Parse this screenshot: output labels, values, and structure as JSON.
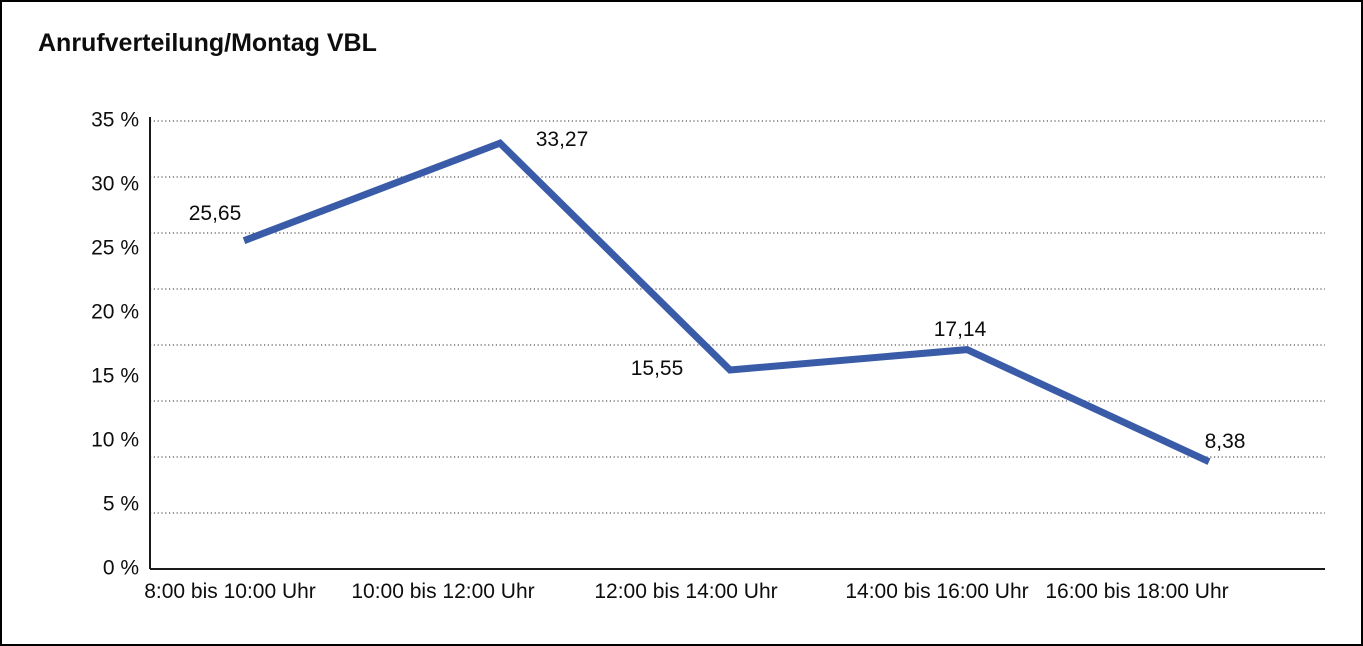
{
  "chart_data": {
    "type": "line",
    "title": "Anrufverteilung/Montag VBL",
    "categories": [
      "8:00 bis 10:00 Uhr",
      "10:00 bis 12:00 Uhr",
      "12:00 bis 14:00 Uhr",
      "14:00 bis 16:00 Uhr",
      "16:00 bis 18:00 Uhr"
    ],
    "values": [
      25.65,
      33.27,
      15.55,
      17.14,
      8.38
    ],
    "data_point_labels": [
      "25,65",
      "33,27",
      "15,55",
      "17,14",
      "8,38"
    ],
    "ytick_labels": [
      "0 %",
      "5 %",
      "10 %",
      "15 %",
      "20 %",
      "25 %",
      "30 %",
      "35 %"
    ],
    "ytick_step": 5,
    "ylim": [
      0,
      35
    ],
    "xlabel": "",
    "ylabel": "",
    "legend": false,
    "grid": "horizontal-dotted",
    "grid_divisions": 8,
    "line_color": "#3a5ba8",
    "grid_color": "#555555",
    "axis_color": "#1a1a1a",
    "text_color": "#0d0d0d",
    "background_color": "#ffffff",
    "frame_border_color": "#000000"
  }
}
